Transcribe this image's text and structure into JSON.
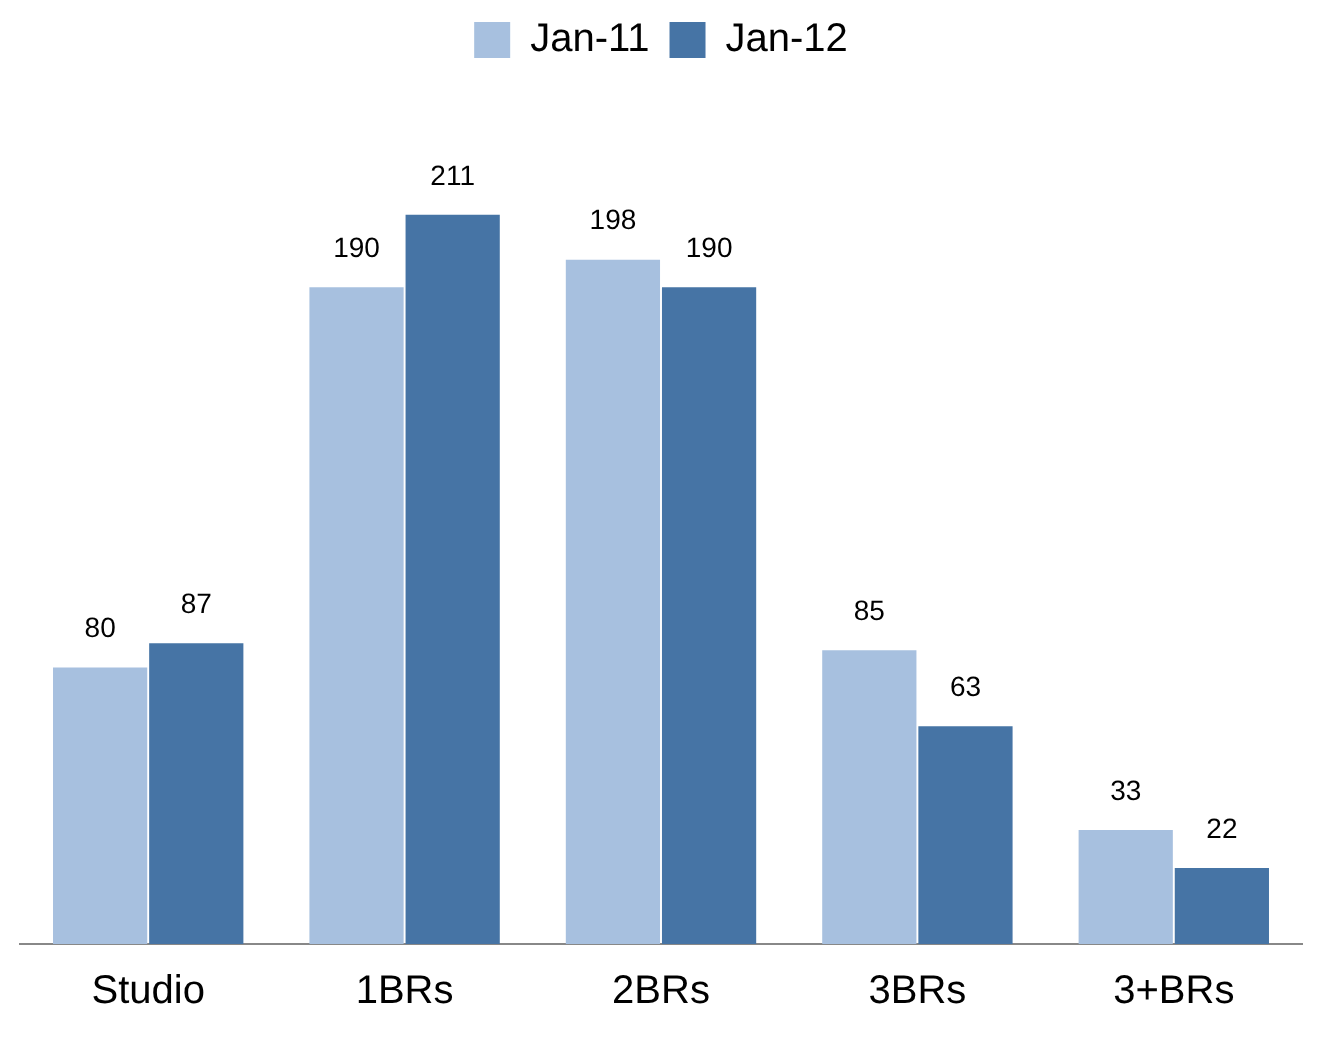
{
  "chart_data": {
    "type": "bar",
    "categories": [
      "Studio",
      "1BRs",
      "2BRs",
      "3BRs",
      "3+BRs"
    ],
    "series": [
      {
        "name": "Jan-11",
        "color": "#a7c0df",
        "values": [
          80,
          190,
          198,
          85,
          33
        ]
      },
      {
        "name": "Jan-12",
        "color": "#4674a5",
        "values": [
          87,
          211,
          190,
          63,
          22
        ]
      }
    ],
    "data_labels": true,
    "legend": "top",
    "grid": false
  }
}
